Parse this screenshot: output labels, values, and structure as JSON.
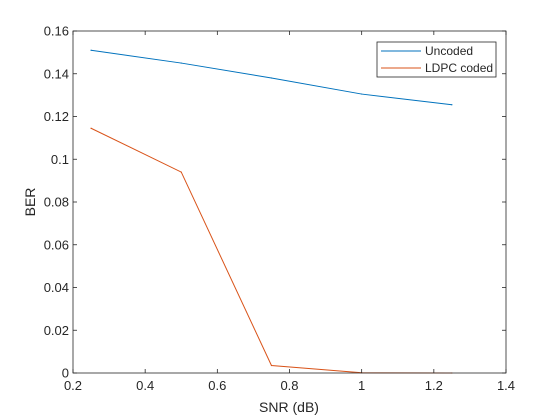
{
  "chart_data": {
    "type": "line",
    "xlabel": "SNR (dB)",
    "ylabel": "BER",
    "xlim": [
      0.2,
      1.4
    ],
    "ylim": [
      0,
      0.16
    ],
    "xticks": [
      0.2,
      0.4,
      0.6,
      0.8,
      1,
      1.2,
      1.4
    ],
    "xtick_labels": [
      "0.2",
      "0.4",
      "0.6",
      "0.8",
      "1",
      "1.2",
      "1.4"
    ],
    "yticks": [
      0,
      0.02,
      0.04,
      0.06,
      0.08,
      0.1,
      0.12,
      0.14,
      0.16
    ],
    "ytick_labels": [
      "0",
      "0.02",
      "0.04",
      "0.06",
      "0.08",
      "0.1",
      "0.12",
      "0.14",
      "0.16"
    ],
    "grid": false,
    "legend_position": "top-right",
    "series": [
      {
        "name": "Uncoded",
        "color": "#0072BD",
        "x": [
          0.25,
          0.5,
          0.75,
          1,
          1.25
        ],
        "y": [
          0.151,
          0.145,
          0.138,
          0.1305,
          0.1255
        ]
      },
      {
        "name": "LDPC coded",
        "color": "#D95319",
        "x": [
          0.25,
          0.5,
          0.75,
          1,
          1.25
        ],
        "y": [
          0.1145,
          0.094,
          0.0035,
          0.0001,
          0.0
        ]
      }
    ]
  }
}
